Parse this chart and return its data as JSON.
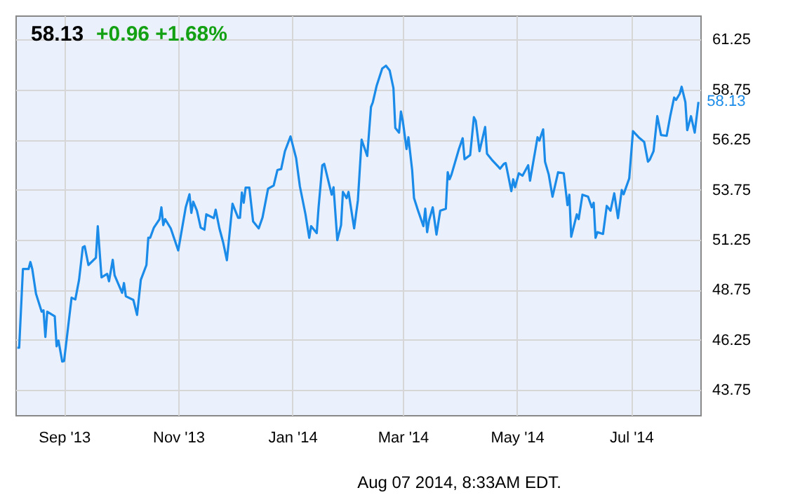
{
  "chart_data": {
    "type": "line",
    "title": "58.13",
    "subtitle": "+0.96  +1.68%",
    "x": [
      "2013-08-07",
      "2013-08-08",
      "2013-08-10",
      "2013-08-13",
      "2013-08-14",
      "2013-08-15",
      "2013-08-17",
      "2013-08-20",
      "2013-08-21",
      "2013-08-22",
      "2013-08-23",
      "2013-08-27",
      "2013-08-28",
      "2013-08-29",
      "2013-08-31",
      "2013-09-01",
      "2013-09-05",
      "2013-09-07",
      "2013-09-09",
      "2013-09-11",
      "2013-09-12",
      "2013-09-14",
      "2013-09-18",
      "2013-09-19",
      "2013-09-21",
      "2013-09-24",
      "2013-09-25",
      "2013-09-27",
      "2013-09-28",
      "2013-10-02",
      "2013-10-03",
      "2013-10-04",
      "2013-10-08",
      "2013-10-10",
      "2013-10-12",
      "2013-10-15",
      "2013-10-16",
      "2013-10-17",
      "2013-10-19",
      "2013-10-22",
      "2013-10-23",
      "2013-10-24",
      "2013-10-25",
      "2013-10-28",
      "2013-11-01",
      "2013-11-05",
      "2013-11-07",
      "2013-11-08",
      "2013-11-09",
      "2013-11-11",
      "2013-11-13",
      "2013-11-15",
      "2013-11-16",
      "2013-11-20",
      "2013-11-21",
      "2013-11-23",
      "2013-11-25",
      "2013-11-27",
      "2013-11-30",
      "2013-12-03",
      "2013-12-04",
      "2013-12-05",
      "2013-12-06",
      "2013-12-07",
      "2013-12-09",
      "2013-12-11",
      "2013-12-14",
      "2013-12-16",
      "2013-12-19",
      "2013-12-22",
      "2013-12-24",
      "2013-12-26",
      "2013-12-28",
      "2013-12-31",
      "2014-01-03",
      "2014-01-05",
      "2014-01-08",
      "2014-01-10",
      "2014-01-11",
      "2014-01-14",
      "2014-01-15",
      "2014-01-17",
      "2014-01-18",
      "2014-01-22",
      "2014-01-23",
      "2014-01-25",
      "2014-01-27",
      "2014-01-28",
      "2014-01-30",
      "2014-01-31",
      "2014-02-03",
      "2014-02-05",
      "2014-02-07",
      "2014-02-10",
      "2014-02-12",
      "2014-02-13",
      "2014-02-15",
      "2014-02-18",
      "2014-02-20",
      "2014-02-22",
      "2014-02-24",
      "2014-02-25",
      "2014-02-27",
      "2014-02-28",
      "2014-03-01",
      "2014-03-03",
      "2014-03-04",
      "2014-03-06",
      "2014-03-07",
      "2014-03-09",
      "2014-03-12",
      "2014-03-13",
      "2014-03-14",
      "2014-03-15",
      "2014-03-17",
      "2014-03-19",
      "2014-03-21",
      "2014-03-24",
      "2014-03-25",
      "2014-03-26",
      "2014-03-27",
      "2014-03-31",
      "2014-04-02",
      "2014-04-03",
      "2014-04-06",
      "2014-04-08",
      "2014-04-09",
      "2014-04-11",
      "2014-04-14",
      "2014-04-15",
      "2014-04-18",
      "2014-04-21",
      "2014-04-22",
      "2014-04-24",
      "2014-04-25",
      "2014-04-28",
      "2014-04-29",
      "2014-04-30",
      "2014-05-02",
      "2014-05-04",
      "2014-05-07",
      "2014-05-08",
      "2014-05-12",
      "2014-05-13",
      "2014-05-15",
      "2014-05-16",
      "2014-05-18",
      "2014-05-20",
      "2014-05-23",
      "2014-05-26",
      "2014-05-28",
      "2014-05-29",
      "2014-05-30",
      "2014-06-02",
      "2014-06-03",
      "2014-06-05",
      "2014-06-08",
      "2014-06-10",
      "2014-06-11",
      "2014-06-12",
      "2014-06-13",
      "2014-06-16",
      "2014-06-18",
      "2014-06-20",
      "2014-06-22",
      "2014-06-24",
      "2014-06-26",
      "2014-06-27",
      "2014-06-30",
      "2014-07-02",
      "2014-07-05",
      "2014-07-08",
      "2014-07-10",
      "2014-07-11",
      "2014-07-13",
      "2014-07-15",
      "2014-07-17",
      "2014-07-20",
      "2014-07-22",
      "2014-07-24",
      "2014-07-25",
      "2014-07-27",
      "2014-07-28",
      "2014-07-30",
      "2014-07-31",
      "2014-08-02",
      "2014-08-04",
      "2014-08-06"
    ],
    "series": [
      {
        "color": "#1a8be8",
        "values": [
          45.86,
          45.86,
          49.79,
          49.79,
          50.14,
          49.79,
          48.55,
          47.66,
          47.73,
          46.4,
          47.66,
          47.43,
          45.93,
          46.22,
          45.17,
          45.2,
          48.36,
          48.27,
          49.25,
          50.88,
          50.93,
          49.99,
          50.35,
          51.93,
          49.37,
          49.55,
          49.18,
          50.25,
          49.48,
          48.6,
          49.09,
          48.43,
          48.25,
          47.5,
          49.25,
          49.99,
          51.35,
          51.35,
          51.86,
          52.28,
          52.87,
          51.98,
          52.28,
          51.82,
          50.72,
          52.87,
          53.52,
          52.59,
          53.15,
          52.7,
          51.86,
          51.75,
          52.52,
          52.33,
          52.75,
          51.82,
          51.12,
          50.23,
          53.05,
          52.35,
          52.35,
          53.61,
          53.1,
          53.85,
          53.85,
          52.17,
          51.82,
          52.35,
          53.8,
          53.96,
          54.73,
          54.78,
          55.67,
          56.41,
          55.32,
          53.92,
          52.52,
          51.35,
          51.93,
          51.58,
          52.87,
          54.97,
          55.04,
          53.5,
          53.87,
          51.23,
          51.98,
          53.64,
          53.33,
          53.64,
          51.82,
          53.22,
          56.25,
          55.43,
          57.88,
          58.12,
          58.93,
          59.8,
          59.94,
          59.7,
          58.82,
          56.83,
          56.6,
          57.65,
          57.18,
          55.78,
          56.37,
          54.73,
          53.33,
          52.75,
          51.93,
          52.8,
          51.63,
          52.21,
          52.87,
          51.51,
          52.7,
          52.8,
          54.62,
          54.27,
          54.5,
          55.78,
          56.32,
          55.27,
          55.48,
          57.37,
          57.18,
          55.67,
          56.88,
          55.55,
          55.2,
          54.9,
          54.8,
          55.04,
          55.08,
          53.68,
          54.27,
          53.87,
          54.57,
          54.45,
          54.97,
          54.2,
          56.37,
          56.2,
          56.76,
          55.15,
          54.5,
          53.4,
          54.62,
          54.57,
          52.98,
          53.5,
          51.4,
          52.52,
          52.28,
          53.5,
          53.4,
          52.87,
          53.1,
          51.35,
          51.63,
          51.54,
          52.94,
          52.7,
          53.57,
          52.33,
          53.73,
          53.52,
          54.31,
          56.67,
          56.37,
          56.13,
          55.15,
          55.25,
          55.67,
          57.42,
          56.48,
          56.44,
          57.46,
          58.35,
          58.23,
          58.54,
          58.89,
          58.12,
          56.72,
          57.42,
          56.6,
          58.13
        ]
      }
    ],
    "xlim": [
      "2013-08-06",
      "2014-08-07"
    ],
    "xticks": [
      {
        "value": "2013-09-01",
        "label": "Sep '13"
      },
      {
        "value": "2013-11-01",
        "label": "Nov '13"
      },
      {
        "value": "2014-01-01",
        "label": "Jan '14"
      },
      {
        "value": "2014-03-01",
        "label": "Mar '14"
      },
      {
        "value": "2014-05-01",
        "label": "May '14"
      },
      {
        "value": "2014-07-01",
        "label": "Jul '14"
      }
    ],
    "ylim": [
      42.5,
      62.45
    ],
    "yticks": [
      43.75,
      46.25,
      48.75,
      51.25,
      53.75,
      56.25,
      58.75,
      61.25
    ],
    "grid": true,
    "annotations": [
      {
        "text": "58.13",
        "x": "2014-08-06",
        "y": 58.13
      },
      "Aug 07 2014, 8:33AM EDT."
    ]
  }
}
